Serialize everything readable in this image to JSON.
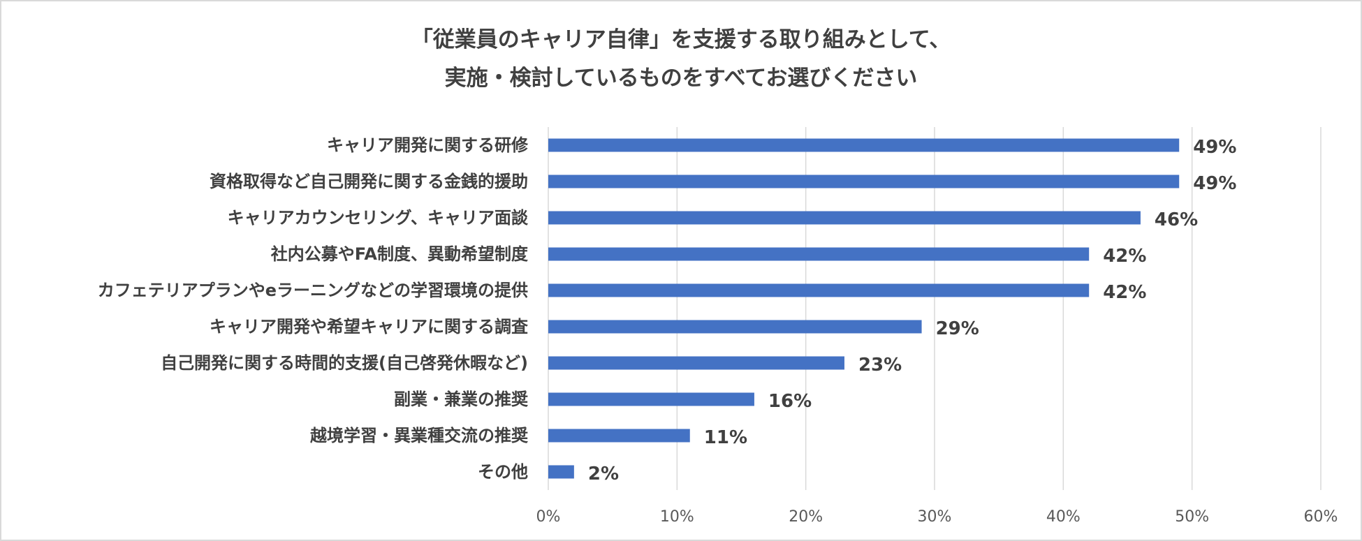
{
  "chart_data": {
    "type": "bar",
    "orientation": "horizontal",
    "title_lines": [
      "「従業員のキャリア自律」を支援する取り組みとして、",
      "実施・検討しているものをすべてお選びください"
    ],
    "categories": [
      "キャリア開発に関する研修",
      "資格取得など自己開発に関する金銭的援助",
      "キャリアカウンセリング、キャリア面談",
      "社内公募やFA制度、異動希望制度",
      "カフェテリアプランやeラーニングなどの学習環境の提供",
      "キャリア開発や希望キャリアに関する調査",
      "自己開発に関する時間的支援(自己啓発休暇など)",
      "副業・兼業の推奨",
      "越境学習・異業種交流の推奨",
      "その他"
    ],
    "values": [
      49,
      49,
      46,
      42,
      42,
      29,
      23,
      16,
      11,
      2
    ],
    "data_labels": [
      "49%",
      "49%",
      "46%",
      "42%",
      "42%",
      "29%",
      "23%",
      "16%",
      "11%",
      "2%"
    ],
    "x_ticks": [
      "0%",
      "10%",
      "20%",
      "30%",
      "40%",
      "50%",
      "60%"
    ],
    "xlim": [
      0,
      60
    ],
    "grid": true,
    "legend": "none",
    "bar_color": "#4472c4"
  }
}
